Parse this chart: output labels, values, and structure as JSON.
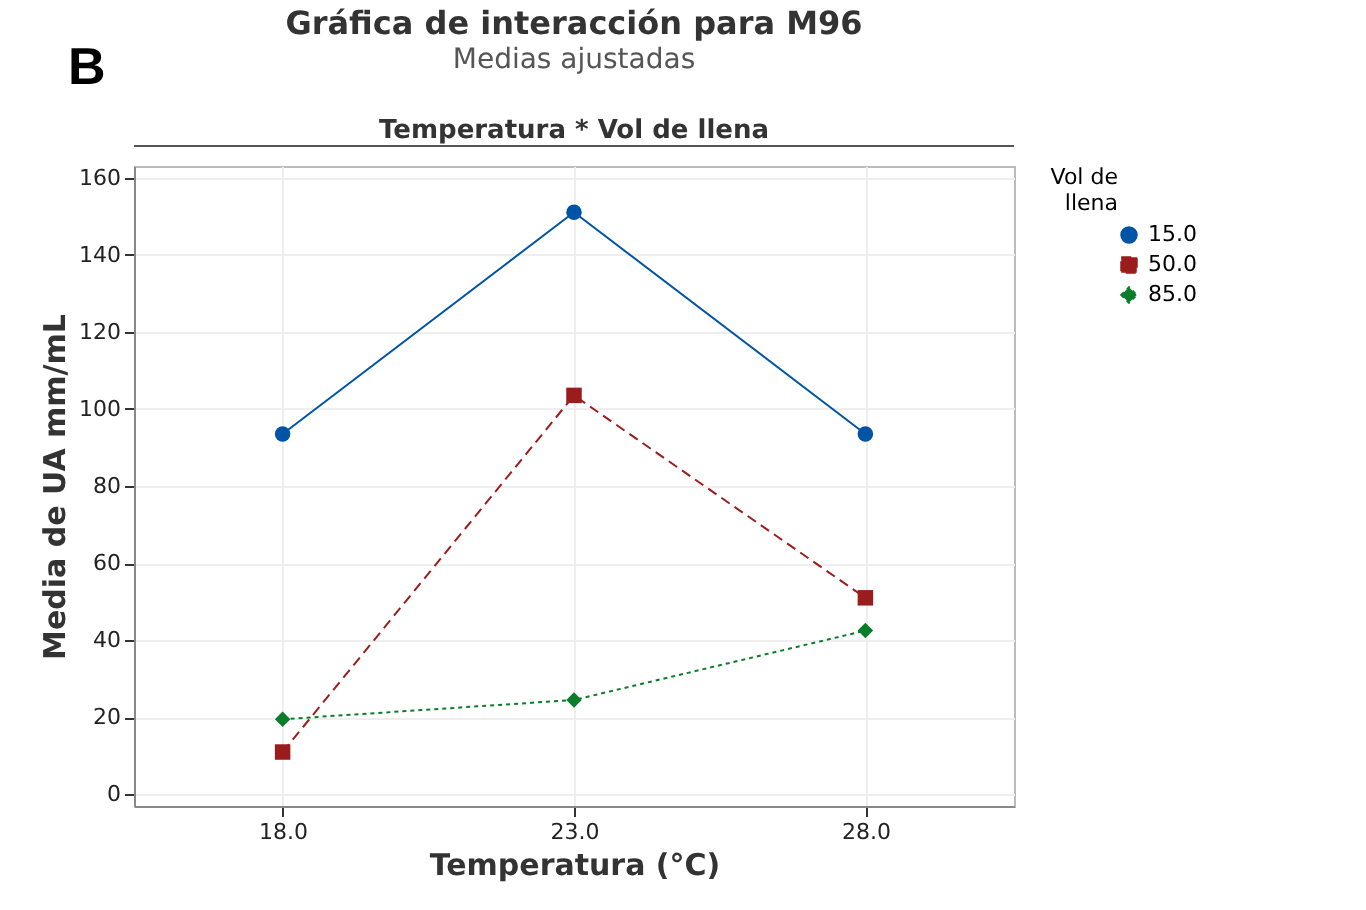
{
  "chart_data": {
    "type": "line",
    "title": "Gráfica de interacción para M96",
    "subtitle": "Medias ajustadas",
    "xlabel": "Temperatura (°C)",
    "ylabel": "Media de UA mm/mL",
    "legend_title": "Vol de llena",
    "annotations": [
      "B",
      "Temperatura * Vol de llena"
    ],
    "x": [
      18,
      23,
      28
    ],
    "xlim": [
      15.45,
      30.55
    ],
    "xticks": [
      {
        "value": 18,
        "label": "18.0"
      },
      {
        "value": 23,
        "label": "23.0"
      },
      {
        "value": 28,
        "label": "28.0"
      }
    ],
    "ylim": [
      -3,
      163
    ],
    "yticks": [
      0,
      20,
      40,
      60,
      80,
      100,
      120,
      140,
      160
    ],
    "grid": true,
    "legend": "top right",
    "series": [
      {
        "name": "15.0",
        "color": "#0054a6",
        "values": [
          93.5,
          151,
          93.5
        ],
        "marker": "circle",
        "line_style": "solid"
      },
      {
        "name": "50.0",
        "color": "#9b1c1c",
        "values": [
          11,
          103.5,
          51
        ],
        "marker": "square",
        "line_style": "dashed"
      },
      {
        "name": "85.0",
        "color": "#0a7d2a",
        "values": [
          19.5,
          24.5,
          42.5
        ],
        "marker": "diamond",
        "line_style": "dotted"
      }
    ]
  }
}
